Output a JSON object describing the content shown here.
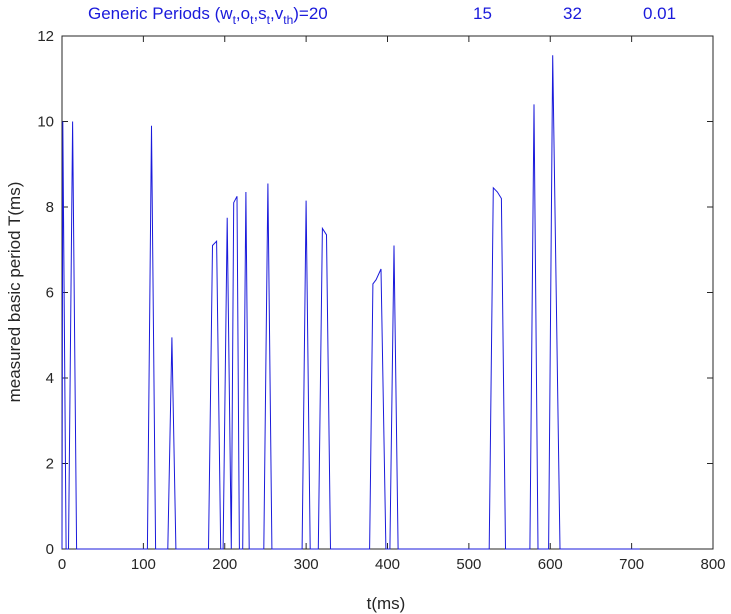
{
  "chart_data": {
    "type": "line",
    "title": {
      "prefix": "Generic Periods (w",
      "parts": [
        {
          "base": "",
          "sub": "t"
        },
        {
          "base": ",o",
          "sub": "t"
        },
        {
          "base": ",s",
          "sub": "t"
        },
        {
          "base": ",v",
          "sub": "th"
        }
      ],
      "suffix": ")=20",
      "values": [
        "15",
        "32",
        "0.01"
      ]
    },
    "xlabel": "t(ms)",
    "ylabel": "measured basic period T(ms)",
    "xlim": [
      0,
      800
    ],
    "ylim": [
      0,
      12
    ],
    "xticks": [
      0,
      100,
      200,
      300,
      400,
      500,
      600,
      700,
      800
    ],
    "yticks": [
      0,
      2,
      4,
      6,
      8,
      10,
      12
    ],
    "grid": false,
    "line_color": "#1a1adb",
    "series": [
      {
        "x": [
          0,
          1,
          5,
          8,
          13,
          18,
          105,
          110,
          115,
          130,
          135,
          140,
          180,
          185,
          190,
          195,
          198,
          203,
          208,
          211,
          215,
          218,
          222,
          226,
          230,
          248,
          253,
          258,
          295,
          300,
          305,
          315,
          320,
          325,
          330,
          378,
          382,
          386,
          392,
          398,
          403,
          408,
          413,
          525,
          530,
          535,
          540,
          545,
          575,
          580,
          585,
          598,
          603,
          612,
          710
        ],
        "y": [
          0,
          10,
          0,
          0,
          10,
          0,
          0,
          9.9,
          0,
          0,
          4.95,
          0,
          0,
          7.1,
          7.2,
          0,
          0,
          7.75,
          0,
          8.1,
          8.25,
          0,
          0,
          8.35,
          0,
          0,
          8.55,
          0,
          0,
          8.15,
          0,
          0,
          7.5,
          7.35,
          0,
          0,
          6.2,
          6.3,
          6.55,
          0,
          0,
          7.1,
          0,
          0,
          8.45,
          8.35,
          8.2,
          0,
          0,
          10.4,
          0,
          0,
          11.55,
          0,
          0
        ]
      }
    ]
  }
}
